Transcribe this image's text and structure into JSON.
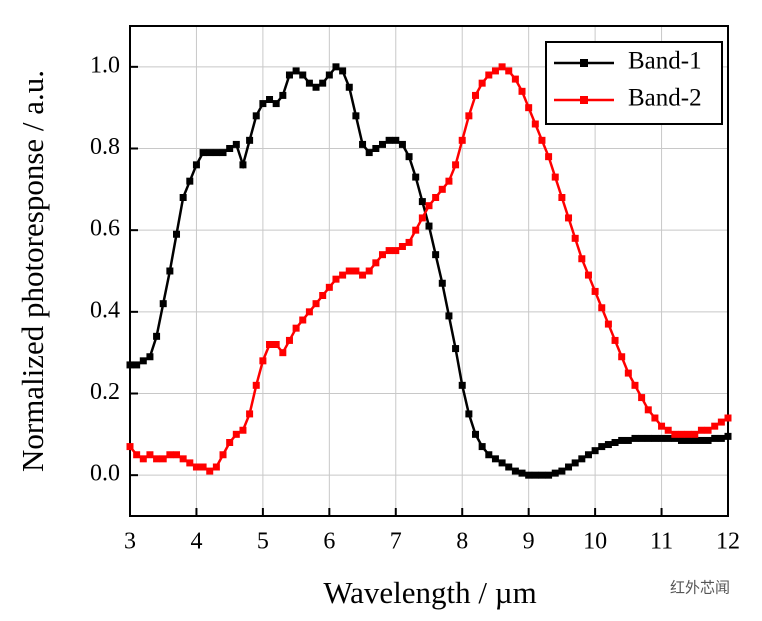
{
  "chart_data": {
    "type": "line",
    "xlabel": "Wavelength / µm",
    "ylabel": "Normalized photoresponse / a.u.",
    "watermark": "红外芯闻",
    "xlim": [
      3,
      12
    ],
    "ylim": [
      -0.1,
      1.1
    ],
    "xticks": [
      3,
      4,
      5,
      6,
      7,
      8,
      9,
      10,
      11,
      12
    ],
    "yticks": [
      {
        "value": 0,
        "label": "0.0"
      },
      0.2,
      0.4,
      0.6,
      0.8,
      {
        "value": 1,
        "label": "1.0"
      }
    ],
    "grid": true,
    "legend": "upper right",
    "x": [
      3,
      3.1,
      3.2,
      3.3,
      3.4,
      3.5,
      3.6,
      3.7,
      3.8,
      3.9,
      4,
      4.1,
      4.2,
      4.3,
      4.4,
      4.5,
      4.6,
      4.7,
      4.8,
      4.9,
      5,
      5.1,
      5.2,
      5.3,
      5.4,
      5.5,
      5.6,
      5.7,
      5.8,
      5.9,
      6,
      6.1,
      6.2,
      6.3,
      6.4,
      6.5,
      6.6,
      6.7,
      6.8,
      6.9,
      7,
      7.1,
      7.2,
      7.3,
      7.4,
      7.5,
      7.6,
      7.7,
      7.8,
      7.9,
      8,
      8.1,
      8.2,
      8.3,
      8.4,
      8.5,
      8.6,
      8.7,
      8.8,
      8.9,
      9,
      9.1,
      9.2,
      9.3,
      9.4,
      9.5,
      9.6,
      9.7,
      9.8,
      9.9,
      10,
      10.1,
      10.2,
      10.3,
      10.4,
      10.5,
      10.6,
      10.7,
      10.8,
      10.9,
      11,
      11.1,
      11.2,
      11.3,
      11.4,
      11.5,
      11.6,
      11.7,
      11.8,
      11.9,
      12
    ],
    "series": [
      {
        "name": "Band-1",
        "color": "#000000",
        "values": [
          0.27,
          0.27,
          0.28,
          0.29,
          0.34,
          0.42,
          0.5,
          0.59,
          0.68,
          0.72,
          0.76,
          0.79,
          0.79,
          0.79,
          0.79,
          0.8,
          0.81,
          0.76,
          0.82,
          0.88,
          0.91,
          0.92,
          0.91,
          0.93,
          0.98,
          0.99,
          0.98,
          0.96,
          0.95,
          0.96,
          0.98,
          1.0,
          0.99,
          0.95,
          0.88,
          0.81,
          0.79,
          0.8,
          0.81,
          0.82,
          0.82,
          0.81,
          0.78,
          0.73,
          0.67,
          0.61,
          0.54,
          0.47,
          0.39,
          0.31,
          0.22,
          0.15,
          0.1,
          0.07,
          0.05,
          0.04,
          0.03,
          0.02,
          0.01,
          0.005,
          0,
          0,
          0,
          0,
          0.005,
          0.01,
          0.02,
          0.03,
          0.04,
          0.05,
          0.06,
          0.07,
          0.075,
          0.08,
          0.085,
          0.085,
          0.09,
          0.09,
          0.09,
          0.09,
          0.09,
          0.09,
          0.09,
          0.085,
          0.085,
          0.085,
          0.085,
          0.085,
          0.09,
          0.09,
          0.095
        ]
      },
      {
        "name": "Band-2",
        "color": "#ff0000",
        "values": [
          0.07,
          0.05,
          0.04,
          0.05,
          0.04,
          0.04,
          0.05,
          0.05,
          0.04,
          0.03,
          0.02,
          0.02,
          0.01,
          0.02,
          0.05,
          0.08,
          0.1,
          0.11,
          0.15,
          0.22,
          0.28,
          0.32,
          0.32,
          0.3,
          0.33,
          0.36,
          0.38,
          0.4,
          0.42,
          0.44,
          0.46,
          0.48,
          0.49,
          0.5,
          0.5,
          0.49,
          0.5,
          0.52,
          0.54,
          0.55,
          0.55,
          0.56,
          0.57,
          0.6,
          0.63,
          0.66,
          0.68,
          0.7,
          0.72,
          0.76,
          0.82,
          0.88,
          0.93,
          0.96,
          0.98,
          0.99,
          1.0,
          0.99,
          0.97,
          0.94,
          0.9,
          0.86,
          0.82,
          0.78,
          0.73,
          0.68,
          0.63,
          0.58,
          0.53,
          0.49,
          0.45,
          0.41,
          0.37,
          0.33,
          0.29,
          0.25,
          0.22,
          0.19,
          0.16,
          0.14,
          0.12,
          0.11,
          0.1,
          0.1,
          0.1,
          0.1,
          0.11,
          0.11,
          0.12,
          0.13,
          0.14
        ]
      }
    ]
  }
}
